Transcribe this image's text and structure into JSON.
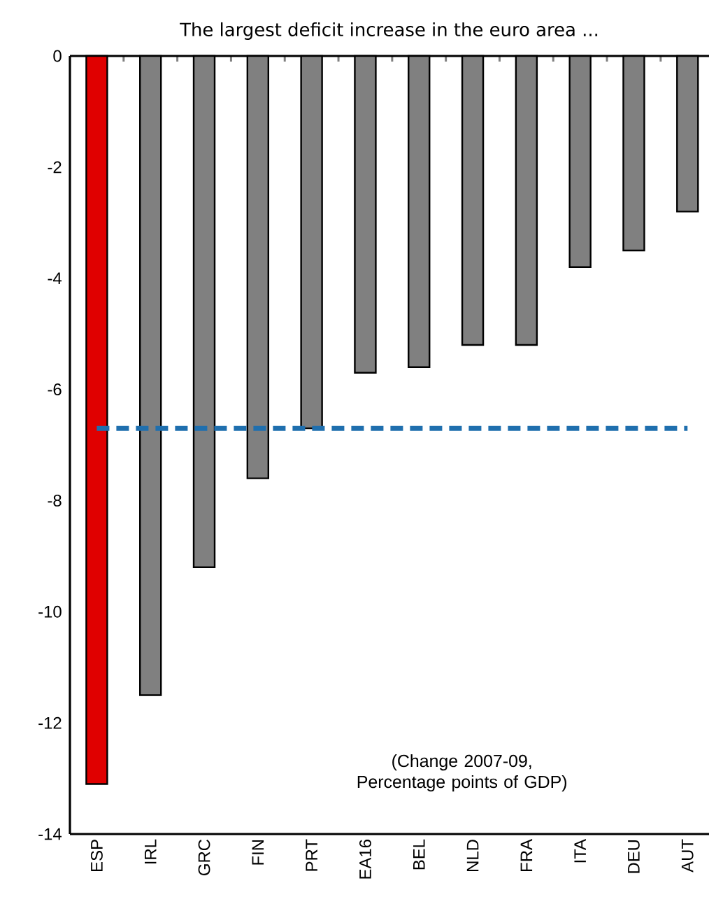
{
  "chart_data": {
    "type": "bar",
    "title": "The largest deficit increase in the euro area ...",
    "categories": [
      "ESP",
      "IRL",
      "GRC",
      "FIN",
      "PRT",
      "EA16",
      "BEL",
      "NLD",
      "FRA",
      "ITA",
      "DEU",
      "AUT"
    ],
    "values": [
      -13.1,
      -11.5,
      -9.2,
      -7.6,
      -6.7,
      -5.7,
      -5.6,
      -5.2,
      -5.2,
      -3.8,
      -3.5,
      -2.8
    ],
    "colors": [
      "#e00000",
      "#808080",
      "#808080",
      "#808080",
      "#808080",
      "#808080",
      "#808080",
      "#808080",
      "#808080",
      "#808080",
      "#808080",
      "#808080"
    ],
    "ylim": [
      -14,
      0
    ],
    "yticks": [
      -14,
      -12,
      -10,
      -8,
      -6,
      -4,
      -2,
      0
    ],
    "ref_lines": [
      {
        "axis": "y",
        "value": -6.7,
        "color": "#1f6fae",
        "line_style": "dashed"
      }
    ],
    "annotations": [
      "(Change 2007-09, Percentage points of GDP)"
    ],
    "grid": false
  }
}
